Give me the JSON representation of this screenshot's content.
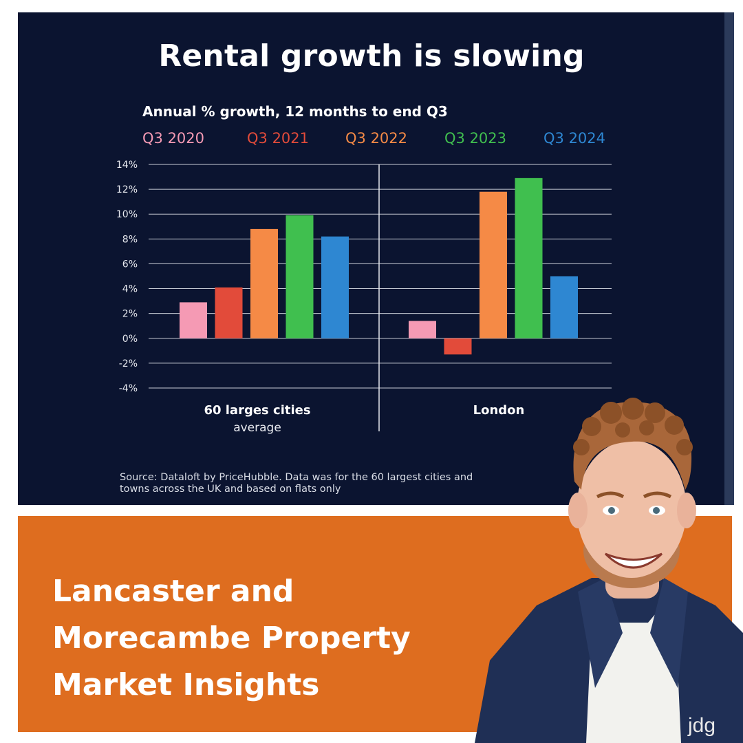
{
  "chart_data": {
    "type": "bar",
    "title": "Rental growth is slowing",
    "subtitle": "Annual % growth, 12 months to end Q3",
    "categories": [
      {
        "label": "60 larges cities",
        "sublabel": "average"
      },
      {
        "label": "London",
        "sublabel": ""
      }
    ],
    "series": [
      {
        "name": "Q3 2020",
        "color": "#f59ab4",
        "values": [
          2.9,
          1.4
        ]
      },
      {
        "name": "Q3 2021",
        "color": "#e24b3a",
        "values": [
          4.1,
          -1.3
        ]
      },
      {
        "name": "Q3 2022",
        "color": "#f58a46",
        "values": [
          8.8,
          11.8
        ]
      },
      {
        "name": "Q3 2023",
        "color": "#40bf4f",
        "values": [
          9.9,
          12.9
        ]
      },
      {
        "name": "Q3 2024",
        "color": "#2e87d2",
        "values": [
          8.2,
          5.0
        ]
      }
    ],
    "ylim": [
      -4,
      14
    ],
    "yticks": [
      14,
      12,
      10,
      8,
      6,
      4,
      2,
      0,
      -2,
      -4
    ],
    "ytick_labels": [
      "14%",
      "12%",
      "10%",
      "8%",
      "6%",
      "4%",
      "2%",
      "0%",
      "-2%",
      "-4%"
    ],
    "grid": true,
    "legend_placement": "top",
    "source": "Source: Dataloft by PriceHubble. Data was for the 60 largest cities and towns across the UK and based on flats only"
  },
  "banner": {
    "headline_lines": [
      "Lancaster and",
      "Morecambe Property",
      "Market Insights"
    ],
    "color": "#de6d1f"
  },
  "photo": {
    "vest_logo_text": "jdg"
  },
  "colors": {
    "chart_background": "#0b1430",
    "banner": "#de6d1f"
  }
}
